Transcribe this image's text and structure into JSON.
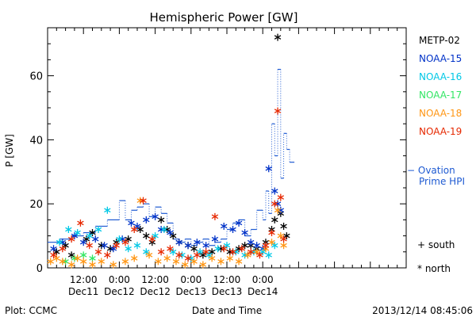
{
  "chart_data": {
    "type": "scatter",
    "title": "Hemispheric Power [GW]",
    "ylabel": "P [GW]",
    "xlabel": "Date and Time",
    "ylim": [
      0,
      75
    ],
    "yticks": [
      0,
      20,
      40,
      60
    ],
    "xlim": [
      0,
      120
    ],
    "x_units": "hours since 2013-12-11 00:00 UT",
    "xticks": [
      {
        "x": 12,
        "line1": "12:00",
        "line2": "Dec11"
      },
      {
        "x": 24,
        "line1": "0:00",
        "line2": "Dec12"
      },
      {
        "x": 36,
        "line1": "12:00",
        "line2": "Dec12"
      },
      {
        "x": 48,
        "line1": "0:00",
        "line2": "Dec13"
      },
      {
        "x": 60,
        "line1": "12:00",
        "line2": "Dec13"
      },
      {
        "x": 72,
        "line1": "0:00",
        "line2": "Dec14"
      }
    ],
    "grid": false,
    "legend_position": "right",
    "series": [
      {
        "name": "METP-02",
        "color": "#000000",
        "points": [
          [
            3,
            5
          ],
          [
            6,
            7
          ],
          [
            8,
            4
          ],
          [
            13,
            9
          ],
          [
            15,
            11
          ],
          [
            18,
            7
          ],
          [
            21,
            6
          ],
          [
            23,
            8
          ],
          [
            27,
            9
          ],
          [
            31,
            12
          ],
          [
            33,
            10
          ],
          [
            35,
            8
          ],
          [
            38,
            15
          ],
          [
            40,
            12
          ],
          [
            42,
            10
          ],
          [
            44,
            8
          ],
          [
            47,
            7
          ],
          [
            49,
            6
          ],
          [
            52,
            4
          ],
          [
            55,
            5
          ],
          [
            58,
            6
          ],
          [
            61,
            5
          ],
          [
            64,
            6
          ],
          [
            66,
            7
          ],
          [
            68,
            7
          ],
          [
            70,
            6
          ],
          [
            73,
            8
          ],
          [
            75,
            12
          ],
          [
            76,
            15
          ],
          [
            77,
            72
          ],
          [
            78,
            17
          ],
          [
            79,
            13
          ],
          [
            80,
            10
          ]
        ]
      },
      {
        "name": "NOAA-15",
        "color": "#0032c8",
        "points": [
          [
            2,
            6
          ],
          [
            5,
            8
          ],
          [
            9,
            10
          ],
          [
            12,
            8
          ],
          [
            16,
            9
          ],
          [
            19,
            7
          ],
          [
            22,
            6
          ],
          [
            25,
            9
          ],
          [
            28,
            14
          ],
          [
            30,
            13
          ],
          [
            33,
            15
          ],
          [
            36,
            16
          ],
          [
            38,
            12
          ],
          [
            41,
            11
          ],
          [
            44,
            8
          ],
          [
            47,
            7
          ],
          [
            50,
            8
          ],
          [
            53,
            7
          ],
          [
            56,
            9
          ],
          [
            59,
            13
          ],
          [
            62,
            12
          ],
          [
            64,
            14
          ],
          [
            66,
            11
          ],
          [
            68,
            8
          ],
          [
            70,
            7
          ],
          [
            72,
            6
          ],
          [
            74,
            31
          ],
          [
            76,
            24
          ],
          [
            77,
            20
          ],
          [
            78,
            18
          ]
        ]
      },
      {
        "name": "NOAA-16",
        "color": "#00c8e6",
        "points": [
          [
            4,
            8
          ],
          [
            7,
            12
          ],
          [
            10,
            11
          ],
          [
            14,
            10
          ],
          [
            17,
            12
          ],
          [
            20,
            18
          ],
          [
            24,
            9
          ],
          [
            27,
            6
          ],
          [
            30,
            7
          ],
          [
            33,
            5
          ],
          [
            36,
            10
          ],
          [
            39,
            12
          ],
          [
            42,
            5
          ],
          [
            45,
            4
          ],
          [
            48,
            3
          ],
          [
            51,
            5
          ],
          [
            54,
            4
          ],
          [
            57,
            6
          ],
          [
            60,
            7
          ],
          [
            63,
            5
          ],
          [
            66,
            4
          ],
          [
            69,
            5
          ],
          [
            72,
            5
          ],
          [
            74,
            4
          ],
          [
            76,
            7
          ]
        ]
      },
      {
        "name": "NOAA-17",
        "color": "#32e664",
        "points": [
          [
            6,
            2
          ],
          [
            9,
            3
          ],
          [
            12,
            4
          ],
          [
            15,
            3
          ]
        ]
      },
      {
        "name": "NOAA-18",
        "color": "#ff9614",
        "points": [
          [
            1,
            2
          ],
          [
            3,
            3
          ],
          [
            5,
            2
          ],
          [
            8,
            1
          ],
          [
            10,
            3
          ],
          [
            12,
            2
          ],
          [
            15,
            1
          ],
          [
            18,
            2
          ],
          [
            22,
            1
          ],
          [
            26,
            2
          ],
          [
            29,
            3
          ],
          [
            31,
            21
          ],
          [
            34,
            4
          ],
          [
            37,
            2
          ],
          [
            40,
            3
          ],
          [
            43,
            2
          ],
          [
            46,
            1
          ],
          [
            49,
            2
          ],
          [
            52,
            1
          ],
          [
            55,
            3
          ],
          [
            58,
            2
          ],
          [
            61,
            3
          ],
          [
            64,
            2
          ],
          [
            67,
            4
          ],
          [
            70,
            5
          ],
          [
            73,
            6
          ],
          [
            75,
            8
          ],
          [
            77,
            18
          ],
          [
            78,
            10
          ],
          [
            79,
            7
          ]
        ]
      },
      {
        "name": "NOAA-19",
        "color": "#e62800",
        "points": [
          [
            2,
            4
          ],
          [
            5,
            6
          ],
          [
            8,
            9
          ],
          [
            11,
            14
          ],
          [
            14,
            7
          ],
          [
            17,
            5
          ],
          [
            20,
            4
          ],
          [
            23,
            7
          ],
          [
            26,
            8
          ],
          [
            29,
            12
          ],
          [
            32,
            21
          ],
          [
            35,
            9
          ],
          [
            38,
            5
          ],
          [
            41,
            6
          ],
          [
            44,
            4
          ],
          [
            47,
            3
          ],
          [
            50,
            4
          ],
          [
            53,
            5
          ],
          [
            56,
            16
          ],
          [
            59,
            6
          ],
          [
            62,
            5
          ],
          [
            65,
            6
          ],
          [
            68,
            5
          ],
          [
            71,
            4
          ],
          [
            73,
            7
          ],
          [
            75,
            11
          ],
          [
            76,
            20
          ],
          [
            77,
            49
          ],
          [
            78,
            22
          ],
          [
            79,
            9
          ]
        ]
      }
    ],
    "ovation": {
      "name": "− Ovation",
      "name2": "Prime HPI",
      "color": "#1e5ad2",
      "points": [
        [
          0,
          8
        ],
        [
          4,
          9
        ],
        [
          8,
          10
        ],
        [
          12,
          11
        ],
        [
          16,
          13
        ],
        [
          20,
          15
        ],
        [
          24,
          21
        ],
        [
          26,
          15
        ],
        [
          28,
          18
        ],
        [
          30,
          19
        ],
        [
          32,
          20
        ],
        [
          34,
          16
        ],
        [
          36,
          19
        ],
        [
          38,
          17
        ],
        [
          40,
          14
        ],
        [
          42,
          9
        ],
        [
          44,
          8
        ],
        [
          46,
          9
        ],
        [
          48,
          7
        ],
        [
          50,
          8
        ],
        [
          52,
          9
        ],
        [
          54,
          7
        ],
        [
          56,
          8
        ],
        [
          58,
          9
        ],
        [
          60,
          12
        ],
        [
          62,
          14
        ],
        [
          64,
          15
        ],
        [
          66,
          10
        ],
        [
          68,
          12
        ],
        [
          70,
          18
        ],
        [
          72,
          15
        ],
        [
          73,
          24
        ],
        [
          74,
          17
        ],
        [
          75,
          45
        ],
        [
          76,
          35
        ],
        [
          77,
          62
        ],
        [
          78,
          28
        ],
        [
          79,
          42
        ],
        [
          80,
          37
        ],
        [
          81,
          33
        ]
      ]
    },
    "markers": {
      "south": "+ south",
      "north": "* north"
    }
  },
  "footer": {
    "plot_credit": "Plot: CCMC",
    "timestamp": "2013/12/14 08:45:06"
  }
}
